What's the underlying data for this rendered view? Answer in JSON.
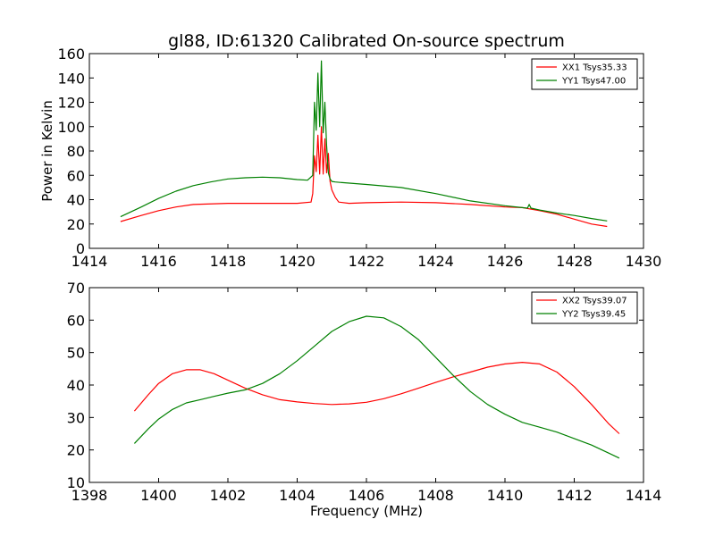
{
  "chart_data": [
    {
      "type": "line",
      "title": "gl88, ID:61320 Calibrated On-source spectrum",
      "xlabel": "",
      "ylabel": "Power in Kelvin",
      "xlim": [
        1414,
        1430
      ],
      "ylim": [
        0,
        160
      ],
      "xticks": [
        1414,
        1416,
        1418,
        1420,
        1422,
        1424,
        1426,
        1428,
        1430
      ],
      "yticks": [
        0,
        20,
        40,
        60,
        80,
        100,
        120,
        140,
        160
      ],
      "legend_position": "top-right",
      "series": [
        {
          "name": "XX1 Tsys35.33",
          "color": "#ff0000",
          "x": [
            1414.9,
            1415.5,
            1416.0,
            1416.5,
            1417.0,
            1418.0,
            1419.0,
            1420.0,
            1420.4,
            1420.45,
            1420.5,
            1420.55,
            1420.6,
            1420.65,
            1420.7,
            1420.75,
            1420.8,
            1420.85,
            1420.9,
            1420.95,
            1421.0,
            1421.1,
            1421.2,
            1421.5,
            1422.0,
            1423.0,
            1424.0,
            1425.0,
            1426.0,
            1426.5,
            1427.0,
            1427.5,
            1428.0,
            1428.5,
            1428.95
          ],
          "y": [
            22,
            27,
            31,
            34,
            36,
            37,
            37,
            37,
            38,
            45,
            76,
            63,
            93,
            61,
            100,
            61,
            90,
            62,
            78,
            55,
            48,
            42,
            38,
            37,
            37.5,
            38,
            37.5,
            36,
            34,
            33.5,
            31,
            28,
            24,
            20,
            18
          ]
        },
        {
          "name": "YY1 Tsys47.00",
          "color": "#008000",
          "x": [
            1414.9,
            1415.5,
            1416.0,
            1416.5,
            1417.0,
            1417.5,
            1418.0,
            1418.5,
            1419.0,
            1419.5,
            1420.0,
            1420.3,
            1420.45,
            1420.5,
            1420.55,
            1420.6,
            1420.65,
            1420.7,
            1420.75,
            1420.8,
            1420.85,
            1420.9,
            1420.95,
            1421.0,
            1421.1,
            1421.3,
            1422.0,
            1423.0,
            1424.0,
            1425.0,
            1426.0,
            1426.65,
            1426.7,
            1426.75,
            1427.0,
            1427.5,
            1428.0,
            1428.5,
            1428.95
          ],
          "y": [
            26,
            34,
            41,
            47,
            51.5,
            54.5,
            57,
            58,
            58.5,
            58,
            56.5,
            56,
            60,
            120,
            97,
            144,
            100,
            154,
            95,
            120,
            85,
            62,
            57,
            55,
            54.5,
            54,
            52.5,
            50,
            45,
            39,
            35,
            33,
            36,
            33,
            31.5,
            29,
            27,
            24.5,
            22.5
          ]
        }
      ]
    },
    {
      "type": "line",
      "title": "",
      "xlabel": "Frequency (MHz)",
      "ylabel": "",
      "xlim": [
        1398,
        1414
      ],
      "ylim": [
        10,
        70
      ],
      "xticks": [
        1398,
        1400,
        1402,
        1404,
        1406,
        1408,
        1410,
        1412,
        1414
      ],
      "yticks": [
        10,
        20,
        30,
        40,
        50,
        60,
        70
      ],
      "legend_position": "top-right",
      "series": [
        {
          "name": "XX2 Tsys39.07",
          "color": "#ff0000",
          "x": [
            1399.3,
            1399.7,
            1400.0,
            1400.4,
            1400.8,
            1401.2,
            1401.6,
            1402.0,
            1402.5,
            1403.0,
            1403.5,
            1404.0,
            1404.5,
            1405.0,
            1405.5,
            1406.0,
            1406.5,
            1407.0,
            1407.5,
            1408.0,
            1408.5,
            1409.0,
            1409.5,
            1410.0,
            1410.5,
            1411.0,
            1411.5,
            1412.0,
            1412.5,
            1413.0,
            1413.3
          ],
          "y": [
            32,
            37,
            40.5,
            43.5,
            44.7,
            44.7,
            43.5,
            41.5,
            39,
            37,
            35.5,
            34.8,
            34.3,
            34,
            34.2,
            34.7,
            35.8,
            37.3,
            39,
            40.8,
            42.5,
            44,
            45.5,
            46.5,
            47,
            46.5,
            44,
            39.5,
            34,
            28,
            25
          ]
        },
        {
          "name": "YY2 Tsys39.45",
          "color": "#008000",
          "x": [
            1399.3,
            1399.7,
            1400.0,
            1400.4,
            1400.8,
            1401.2,
            1401.6,
            1402.0,
            1402.5,
            1403.0,
            1403.5,
            1404.0,
            1404.5,
            1405.0,
            1405.5,
            1406.0,
            1406.5,
            1407.0,
            1407.5,
            1408.0,
            1408.5,
            1409.0,
            1409.5,
            1410.0,
            1410.5,
            1411.0,
            1411.5,
            1412.0,
            1412.5,
            1413.0,
            1413.3
          ],
          "y": [
            22,
            26.5,
            29.5,
            32.5,
            34.5,
            35.5,
            36.5,
            37.5,
            38.5,
            40.5,
            43.5,
            47.5,
            52,
            56.5,
            59.5,
            61.2,
            60.7,
            58,
            54,
            48.5,
            43,
            38,
            34,
            31,
            28.5,
            27,
            25.5,
            23.5,
            21.5,
            19,
            17.5
          ]
        }
      ]
    }
  ]
}
